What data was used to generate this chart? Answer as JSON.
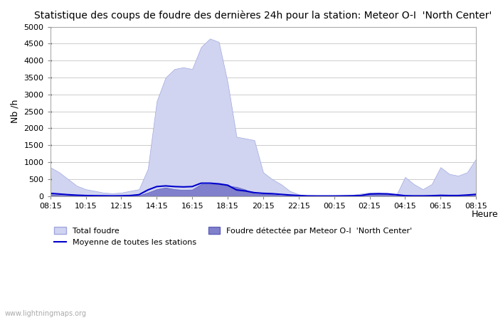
{
  "title": "Statistique des coups de foudre des dernières 24h pour la station: Meteor O-I  'North Center'",
  "ylabel": "Nb /h",
  "xlabel": "Heure",
  "xlim": [
    0,
    48
  ],
  "ylim": [
    0,
    5000
  ],
  "yticks": [
    0,
    500,
    1000,
    1500,
    2000,
    2500,
    3000,
    3500,
    4000,
    4500,
    5000
  ],
  "xtick_labels": [
    "08:15",
    "10:15",
    "12:15",
    "14:15",
    "16:15",
    "18:15",
    "20:15",
    "22:15",
    "00:15",
    "02:15",
    "04:15",
    "06:15",
    "08:15"
  ],
  "background_color": "#ffffff",
  "plot_bg_color": "#ffffff",
  "grid_color": "#cccccc",
  "total_foudre_color": "#d0d4f0",
  "total_foudre_edge": "#a0a8e0",
  "detected_color": "#8080cc",
  "detected_edge": "#6060bb",
  "avg_line_color": "#0000cc",
  "watermark": "www.lightningmaps.org",
  "legend_total": "Total foudre",
  "legend_detected": "Foudre détectée par Meteor O-I  'North Center'",
  "legend_avg": "Moyenne de toutes les stations",
  "total_foudre": [
    850,
    700,
    500,
    300,
    200,
    150,
    100,
    80,
    100,
    150,
    200,
    800,
    2800,
    3500,
    3750,
    3800,
    3750,
    4400,
    4650,
    4550,
    3350,
    1750,
    1700,
    1650,
    700,
    500,
    350,
    150,
    50,
    10,
    5,
    5,
    5,
    20,
    30,
    70,
    100,
    90,
    50,
    20,
    560,
    350,
    200,
    350,
    850,
    650,
    600,
    700,
    1100
  ],
  "detected_foudre": [
    50,
    30,
    20,
    10,
    5,
    3,
    2,
    1,
    2,
    5,
    20,
    100,
    200,
    250,
    200,
    180,
    190,
    350,
    350,
    350,
    300,
    270,
    190,
    70,
    60,
    50,
    20,
    10,
    2,
    0,
    0,
    0,
    0,
    0,
    0,
    0,
    50,
    60,
    50,
    20,
    0,
    0,
    0,
    0,
    0,
    0,
    0,
    10,
    30
  ],
  "avg_line": [
    80,
    60,
    40,
    25,
    15,
    10,
    8,
    5,
    8,
    15,
    40,
    180,
    280,
    300,
    280,
    270,
    280,
    380,
    380,
    360,
    320,
    180,
    150,
    100,
    80,
    70,
    50,
    30,
    15,
    5,
    2,
    2,
    2,
    5,
    8,
    15,
    60,
    70,
    65,
    40,
    10,
    5,
    5,
    10,
    20,
    15,
    15,
    30,
    50
  ]
}
